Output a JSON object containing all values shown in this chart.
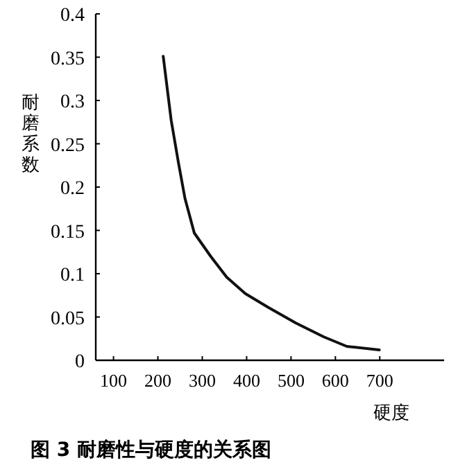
{
  "chart_data": {
    "type": "line",
    "title": "图 3  耐磨性与硬度的关系图",
    "xlabel": "硬度",
    "ylabel": "耐磨系数",
    "x": [
      212,
      230,
      246,
      261,
      282,
      319,
      355,
      397,
      449,
      511,
      574,
      626,
      699
    ],
    "values": [
      0.351,
      0.277,
      0.229,
      0.187,
      0.147,
      0.12,
      0.096,
      0.077,
      0.061,
      0.043,
      0.027,
      0.016,
      0.012
    ],
    "color": "#111111",
    "xlim": [
      60,
      845
    ],
    "ylim": [
      0,
      0.4
    ],
    "xticks": [
      100,
      200,
      300,
      400,
      500,
      600,
      700
    ],
    "yticks": [
      0,
      0.05,
      0.1,
      0.15,
      0.2,
      0.25,
      0.3,
      0.35,
      0.4
    ],
    "grid": false,
    "marker": "none",
    "line_style": "solid"
  }
}
